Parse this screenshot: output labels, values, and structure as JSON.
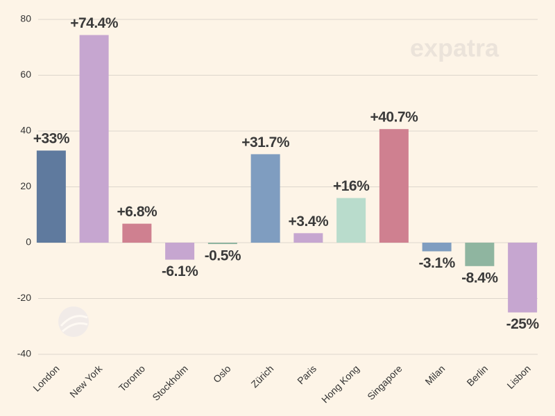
{
  "chart_data": {
    "type": "bar",
    "annotation": "expatra",
    "categories": [
      "London",
      "New York",
      "Toronto",
      "Stockholm",
      "Oslo",
      "Zürich",
      "Paris",
      "Hong Kong",
      "Singapore",
      "Milan",
      "Berlin",
      "Lisbon"
    ],
    "values": [
      33,
      74.4,
      6.8,
      -6.1,
      -0.5,
      31.7,
      3.4,
      16,
      40.7,
      -3.1,
      -8.4,
      -25
    ],
    "value_labels": [
      "+33%",
      "+74.4%",
      "+6.8%",
      "-6.1%",
      "-0.5%",
      "+31.7%",
      "+3.4%",
      "+16%",
      "+40.7%",
      "-3.1%",
      "-8.4%",
      "-25%"
    ],
    "colors": [
      "#5f7a9e",
      "#c6a6d0",
      "#cf8090",
      "#c6a6d0",
      "#8fb5a0",
      "#7f9dc0",
      "#c6a6d0",
      "#b9dccc",
      "#cf8090",
      "#7f9dc0",
      "#8fb5a0",
      "#c6a6d0"
    ],
    "ylim": [
      -40,
      80
    ],
    "yticks": [
      -40,
      -20,
      0,
      20,
      40,
      60,
      80
    ],
    "grid": true
  }
}
